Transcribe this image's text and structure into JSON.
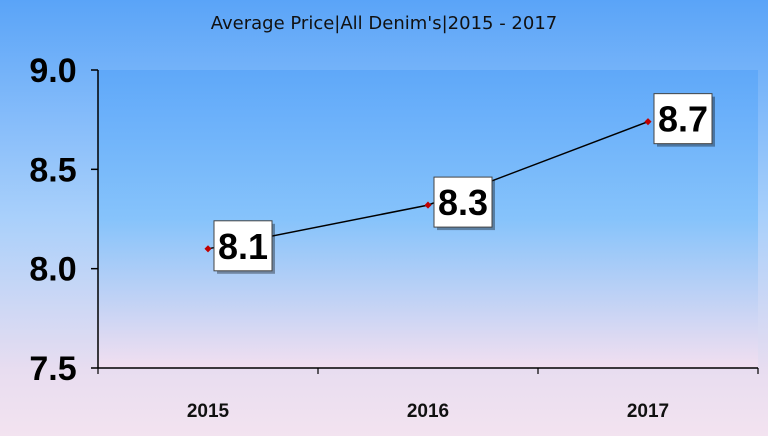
{
  "chart_data": {
    "type": "line",
    "title": "Average Price|All Denim's|2015 - 2017",
    "xlabel": "",
    "ylabel": "",
    "categories": [
      "2015",
      "2016",
      "2017"
    ],
    "series": [
      {
        "values": [
          8.1,
          8.32,
          8.74
        ]
      }
    ],
    "data_labels": [
      "8.1",
      "8.3",
      "8.7"
    ],
    "ylim": [
      7.5,
      9.0
    ],
    "yticks": [
      7.5,
      8.0,
      8.5,
      9.0
    ],
    "ytick_labels": [
      "7.5",
      "8.0",
      "8.5",
      "9.0"
    ],
    "grid": false,
    "legend": "none",
    "colors": {
      "line": "#000000",
      "marker": "#c00000",
      "label_box": "#ffffff"
    }
  }
}
